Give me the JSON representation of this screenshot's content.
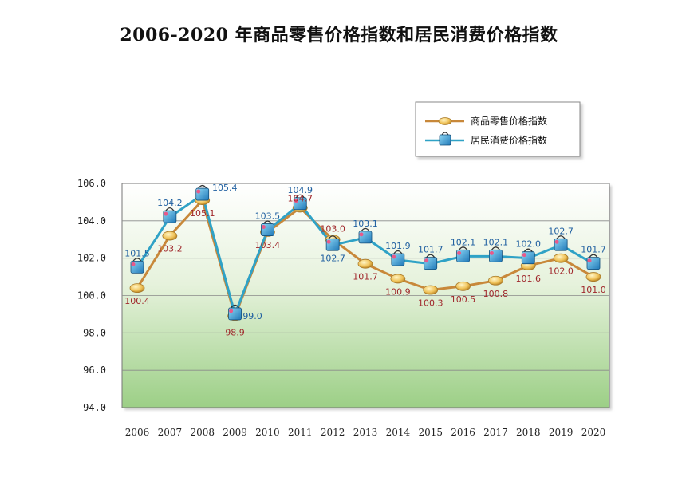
{
  "chart_data": {
    "type": "line",
    "title": "2006-2020 年商品零售价格指数和居民消费价格指数",
    "xlabel": "",
    "ylabel": "",
    "categories": [
      "2006",
      "2007",
      "2008",
      "2009",
      "2010",
      "2011",
      "2012",
      "2013",
      "2014",
      "2015",
      "2016",
      "2017",
      "2018",
      "2019",
      "2020"
    ],
    "ylim": [
      94.0,
      106.0
    ],
    "yticks": [
      "94.0",
      "96.0",
      "98.0",
      "100.0",
      "102.0",
      "104.0",
      "106.0"
    ],
    "grid": true,
    "legend_position": "top-right",
    "series": [
      {
        "name": "商品零售价格指数",
        "color": "#c8883a",
        "marker": "coin",
        "values": [
          100.4,
          103.2,
          105.1,
          98.9,
          103.4,
          104.7,
          103.0,
          101.7,
          100.9,
          100.3,
          100.5,
          100.8,
          101.6,
          102.0,
          101.0
        ],
        "labels": [
          "100.4",
          "103.2",
          "105.1",
          "98.9",
          "103.4",
          "104.7",
          "103.0",
          "101.7",
          "100.9",
          "100.3",
          "100.5",
          "100.8",
          "101.6",
          "102.0",
          "101.0"
        ]
      },
      {
        "name": "居民消费价格指数",
        "color": "#2fa2c6",
        "marker": "shopping-bag",
        "values": [
          101.5,
          104.2,
          105.4,
          99.0,
          103.5,
          104.9,
          102.7,
          103.1,
          101.9,
          101.7,
          102.1,
          102.1,
          102.0,
          102.7,
          101.7
        ],
        "labels": [
          "101.5",
          "104.2",
          "105.4",
          "99.0",
          "103.5",
          "104.9",
          "102.7",
          "103.1",
          "101.9",
          "101.7",
          "102.1",
          "102.1",
          "102.0",
          "102.7",
          "101.7"
        ]
      }
    ]
  }
}
